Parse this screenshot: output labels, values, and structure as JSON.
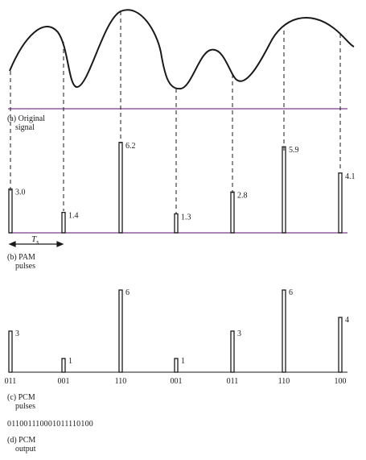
{
  "section_a": {
    "letter": "(a)",
    "line1": "Original",
    "line2": "signal"
  },
  "section_b": {
    "letter": "(b)",
    "line1": "PAM",
    "line2": "pulses",
    "ts_symbol": "T",
    "ts_sub": "s",
    "samples": [
      3.0,
      1.4,
      6.2,
      1.3,
      2.8,
      5.9,
      4.1
    ],
    "sample_labels": [
      "3.0",
      "1.4",
      "6.2",
      "1.3",
      "2.8",
      "5.9",
      "4.1"
    ]
  },
  "section_c": {
    "letter": "(c)",
    "line1": "PCM",
    "line2": "pulses",
    "levels": [
      3,
      1,
      6,
      1,
      3,
      6,
      4
    ],
    "level_labels": [
      "3",
      "1",
      "6",
      "1",
      "3",
      "6",
      "4"
    ],
    "codes": [
      "011",
      "001",
      "110",
      "001",
      "011",
      "110",
      "100"
    ]
  },
  "section_d": {
    "letter": "(d)",
    "line1": "PCM",
    "line2": "output",
    "bitstream": "011001110001011110100"
  },
  "colors": {
    "ink": "#1a1a1a",
    "baseline": "#7a3d8c"
  }
}
